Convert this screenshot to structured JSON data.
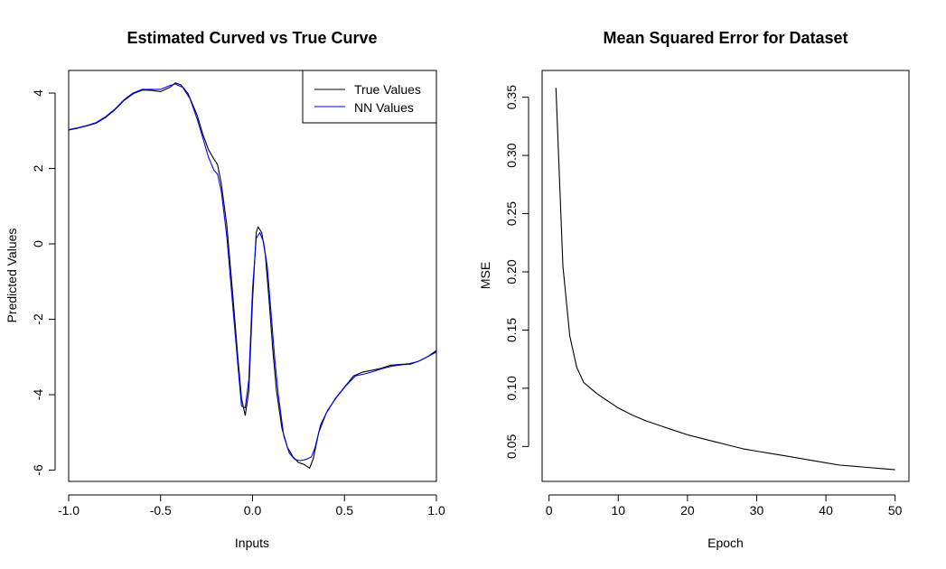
{
  "chart_data": [
    {
      "type": "line",
      "title": "Estimated Curved vs True Curve",
      "xlabel": "Inputs",
      "ylabel": "Predicted Values",
      "xlim": [
        -1.0,
        1.0
      ],
      "ylim": [
        -6.3,
        4.6
      ],
      "xticks": [
        -1.0,
        -0.5,
        0.0,
        0.5,
        1.0
      ],
      "xtick_labels": [
        "-1.0",
        "-0.5",
        "0.0",
        "0.5",
        "1.0"
      ],
      "yticks": [
        -6,
        -4,
        -2,
        0,
        2,
        4
      ],
      "ytick_labels": [
        "-6",
        "-4",
        "-2",
        "0",
        "2",
        "4"
      ],
      "legend_position": "top-right",
      "series": [
        {
          "name": "True Values",
          "color": "#000000",
          "points": [
            [
              -1.0,
              3.02
            ],
            [
              -0.95,
              3.07
            ],
            [
              -0.9,
              3.13
            ],
            [
              -0.85,
              3.2
            ],
            [
              -0.8,
              3.35
            ],
            [
              -0.75,
              3.55
            ],
            [
              -0.7,
              3.8
            ],
            [
              -0.65,
              3.98
            ],
            [
              -0.6,
              4.08
            ],
            [
              -0.55,
              4.07
            ],
            [
              -0.5,
              4.04
            ],
            [
              -0.45,
              4.15
            ],
            [
              -0.42,
              4.27
            ],
            [
              -0.39,
              4.22
            ],
            [
              -0.35,
              3.98
            ],
            [
              -0.3,
              3.4
            ],
            [
              -0.27,
              2.9
            ],
            [
              -0.24,
              2.5
            ],
            [
              -0.21,
              2.25
            ],
            [
              -0.19,
              2.1
            ],
            [
              -0.17,
              1.6
            ],
            [
              -0.14,
              0.5
            ],
            [
              -0.11,
              -1.2
            ],
            [
              -0.08,
              -3.0
            ],
            [
              -0.06,
              -4.1
            ],
            [
              -0.04,
              -4.55
            ],
            [
              -0.02,
              -3.9
            ],
            [
              0.0,
              -1.5
            ],
            [
              0.02,
              0.3
            ],
            [
              0.03,
              0.45
            ],
            [
              0.05,
              0.3
            ],
            [
              0.07,
              -0.3
            ],
            [
              0.09,
              -1.5
            ],
            [
              0.11,
              -2.8
            ],
            [
              0.13,
              -3.9
            ],
            [
              0.16,
              -4.9
            ],
            [
              0.19,
              -5.4
            ],
            [
              0.22,
              -5.65
            ],
            [
              0.25,
              -5.8
            ],
            [
              0.28,
              -5.85
            ],
            [
              0.31,
              -5.95
            ],
            [
              0.33,
              -5.7
            ],
            [
              0.36,
              -5.0
            ],
            [
              0.4,
              -4.5
            ],
            [
              0.45,
              -4.1
            ],
            [
              0.5,
              -3.8
            ],
            [
              0.55,
              -3.5
            ],
            [
              0.6,
              -3.4
            ],
            [
              0.65,
              -3.35
            ],
            [
              0.7,
              -3.3
            ],
            [
              0.75,
              -3.22
            ],
            [
              0.8,
              -3.2
            ],
            [
              0.85,
              -3.18
            ],
            [
              0.9,
              -3.12
            ],
            [
              0.95,
              -3.0
            ],
            [
              1.0,
              -2.83
            ]
          ]
        },
        {
          "name": "NN Values",
          "color": "#0000ff",
          "points": [
            [
              -1.0,
              3.03
            ],
            [
              -0.95,
              3.08
            ],
            [
              -0.9,
              3.14
            ],
            [
              -0.85,
              3.22
            ],
            [
              -0.8,
              3.37
            ],
            [
              -0.75,
              3.57
            ],
            [
              -0.7,
              3.82
            ],
            [
              -0.65,
              4.0
            ],
            [
              -0.6,
              4.1
            ],
            [
              -0.55,
              4.1
            ],
            [
              -0.5,
              4.1
            ],
            [
              -0.45,
              4.2
            ],
            [
              -0.42,
              4.24
            ],
            [
              -0.38,
              4.15
            ],
            [
              -0.34,
              3.85
            ],
            [
              -0.3,
              3.3
            ],
            [
              -0.27,
              2.8
            ],
            [
              -0.24,
              2.3
            ],
            [
              -0.21,
              1.95
            ],
            [
              -0.19,
              1.85
            ],
            [
              -0.17,
              1.4
            ],
            [
              -0.14,
              0.2
            ],
            [
              -0.11,
              -1.5
            ],
            [
              -0.08,
              -3.2
            ],
            [
              -0.06,
              -4.3
            ],
            [
              -0.04,
              -4.35
            ],
            [
              -0.02,
              -3.6
            ],
            [
              0.0,
              -1.2
            ],
            [
              0.02,
              0.15
            ],
            [
              0.04,
              0.3
            ],
            [
              0.06,
              0.05
            ],
            [
              0.08,
              -0.6
            ],
            [
              0.1,
              -1.8
            ],
            [
              0.12,
              -3.0
            ],
            [
              0.14,
              -4.0
            ],
            [
              0.17,
              -5.1
            ],
            [
              0.2,
              -5.55
            ],
            [
              0.23,
              -5.72
            ],
            [
              0.26,
              -5.75
            ],
            [
              0.29,
              -5.72
            ],
            [
              0.32,
              -5.65
            ],
            [
              0.34,
              -5.4
            ],
            [
              0.37,
              -4.8
            ],
            [
              0.41,
              -4.4
            ],
            [
              0.46,
              -4.05
            ],
            [
              0.51,
              -3.75
            ],
            [
              0.56,
              -3.5
            ],
            [
              0.61,
              -3.45
            ],
            [
              0.66,
              -3.38
            ],
            [
              0.71,
              -3.3
            ],
            [
              0.76,
              -3.24
            ],
            [
              0.81,
              -3.21
            ],
            [
              0.86,
              -3.19
            ],
            [
              0.91,
              -3.1
            ],
            [
              0.96,
              -2.97
            ],
            [
              1.0,
              -2.87
            ]
          ]
        }
      ]
    },
    {
      "type": "line",
      "title": "Mean Squared Error for Dataset",
      "xlabel": "Epoch",
      "ylabel": "MSE",
      "xlim": [
        -1,
        52
      ],
      "ylim": [
        0.02,
        0.373
      ],
      "xticks": [
        0,
        10,
        20,
        30,
        40,
        50
      ],
      "xtick_labels": [
        "0",
        "10",
        "20",
        "30",
        "40",
        "50"
      ],
      "yticks": [
        0.05,
        0.1,
        0.15,
        0.2,
        0.25,
        0.3,
        0.35
      ],
      "ytick_labels": [
        "0.05",
        "0.10",
        "0.15",
        "0.20",
        "0.25",
        "0.30",
        "0.35"
      ],
      "series": [
        {
          "name": "MSE",
          "color": "#000000",
          "points": [
            [
              1,
              0.358
            ],
            [
              2,
              0.205
            ],
            [
              3,
              0.145
            ],
            [
              4,
              0.118
            ],
            [
              5,
              0.105
            ],
            [
              6,
              0.1
            ],
            [
              7,
              0.095
            ],
            [
              8,
              0.091
            ],
            [
              9,
              0.087
            ],
            [
              10,
              0.083
            ],
            [
              12,
              0.077
            ],
            [
              14,
              0.072
            ],
            [
              16,
              0.068
            ],
            [
              18,
              0.064
            ],
            [
              20,
              0.06
            ],
            [
              22,
              0.057
            ],
            [
              24,
              0.054
            ],
            [
              26,
              0.051
            ],
            [
              28,
              0.048
            ],
            [
              30,
              0.046
            ],
            [
              32,
              0.044
            ],
            [
              34,
              0.042
            ],
            [
              36,
              0.04
            ],
            [
              38,
              0.038
            ],
            [
              40,
              0.036
            ],
            [
              42,
              0.034
            ],
            [
              44,
              0.033
            ],
            [
              46,
              0.032
            ],
            [
              48,
              0.031
            ],
            [
              50,
              0.03
            ]
          ]
        }
      ]
    }
  ]
}
